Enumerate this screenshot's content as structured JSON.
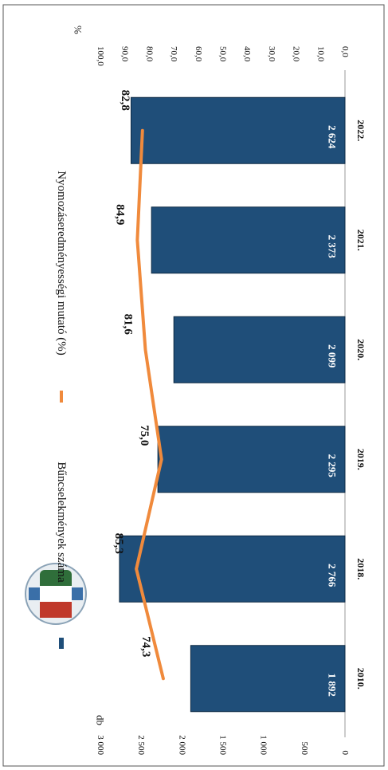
{
  "chart_data": {
    "type": "bar",
    "categories": [
      "2010.",
      "2018.",
      "2019.",
      "2020.",
      "2021.",
      "2022."
    ],
    "series": [
      {
        "name": "Bűncselekmények száma",
        "type": "bar",
        "axis": "left",
        "values": [
          1892,
          2766,
          2295,
          2099,
          2373,
          2624
        ],
        "data_labels": [
          "1 892",
          "2 766",
          "2 295",
          "2 099",
          "2 373",
          "2 624"
        ],
        "color": "#1f4e79"
      },
      {
        "name": "Nyomozáseredményességi mutató (%)",
        "type": "line",
        "axis": "right",
        "values": [
          74.3,
          85.3,
          75.0,
          81.6,
          84.9,
          82.8
        ],
        "data_labels": [
          "74,3",
          "85,3",
          "75,0",
          "81,6",
          "84,9",
          "82,8"
        ],
        "color": "#f08a3c"
      }
    ],
    "y_left": {
      "label": "db",
      "range": [
        0,
        3000
      ],
      "tick_labels": [
        "0",
        "500",
        "1 000",
        "1 500",
        "2 000",
        "2 500",
        "3 000"
      ]
    },
    "y_right": {
      "label": "%",
      "range": [
        0,
        100
      ],
      "tick_labels": [
        "0,0",
        "10,0",
        "20,0",
        "30,0",
        "40,0",
        "50,0",
        "60,0",
        "70,0",
        "80,0",
        "90,0",
        "100,0"
      ]
    },
    "grid": false,
    "orientation": "rotated-90-clockwise",
    "legend_position": "top"
  }
}
